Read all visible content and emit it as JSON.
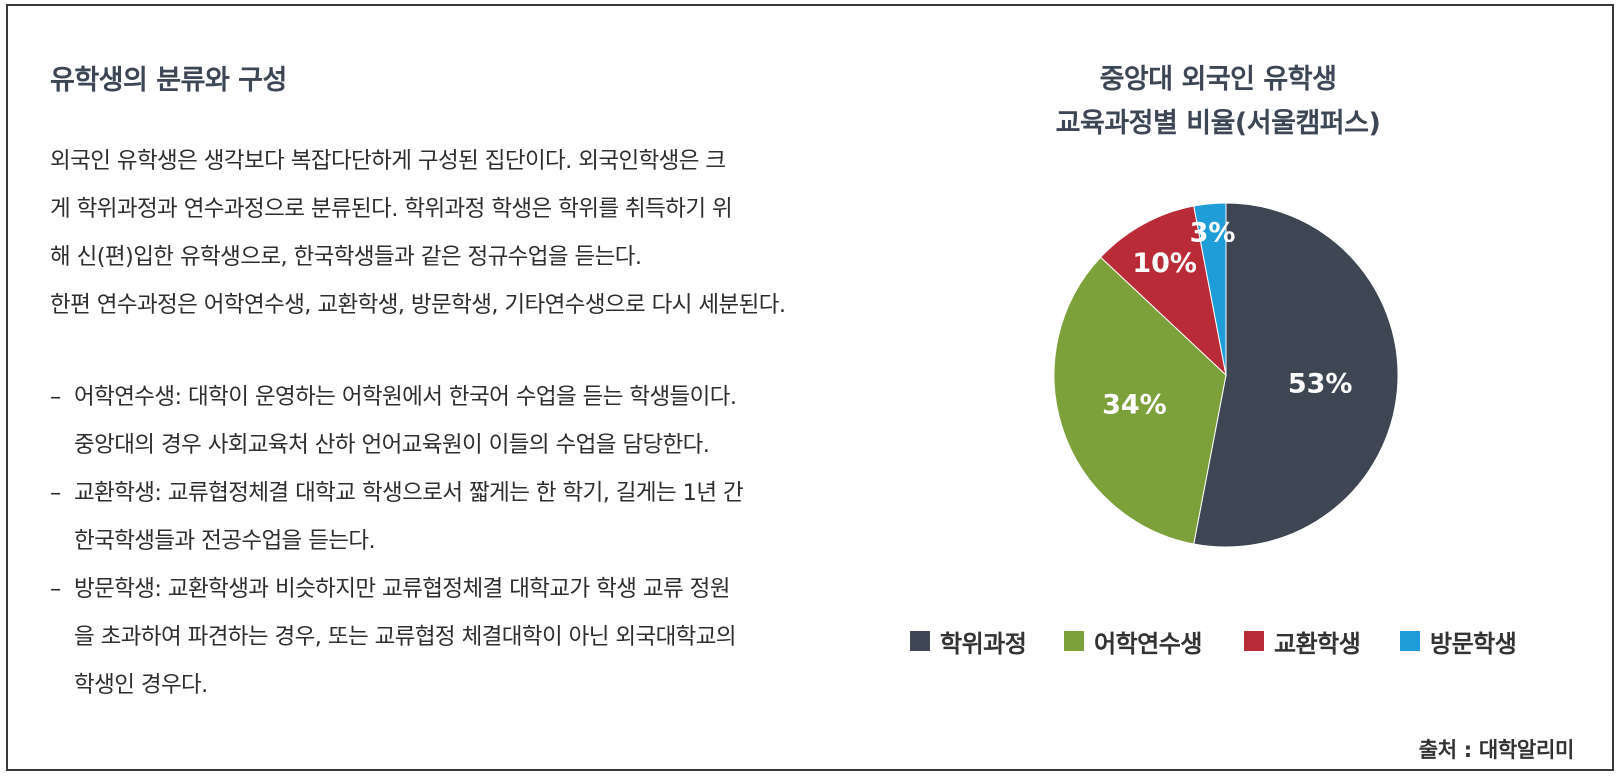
{
  "left": {
    "heading": "유학생의 분류와 구성",
    "intro_lines": [
      "외국인 유학생은 생각보다 복잡다단하게 구성된 집단이다.  외국인학생은 크",
      "게 학위과정과 연수과정으로 분류된다. 학위과정 학생은 학위를 취득하기 위",
      "해 신(편)입한 유학생으로, 한국학생들과 같은 정규수업을 듣는다.",
      "한편 연수과정은 어학연수생, 교환학생, 방문학생, 기타연수생으로 다시 세분된다."
    ],
    "dash": "–",
    "bullets": [
      {
        "lines": [
          "어학연수생: 대학이 운영하는 어학원에서 한국어 수업을 듣는 학생들이다.",
          "중앙대의 경우 사회교육처 산하 언어교육원이 이들의 수업을 담당한다."
        ]
      },
      {
        "lines": [
          "교환학생: 교류협정체결 대학교 학생으로서 짧게는 한 학기, 길게는 1년 간",
          "한국학생들과 전공수업을 듣는다."
        ]
      },
      {
        "lines": [
          "방문학생: 교환학생과 비슷하지만 교류협정체결 대학교가 학생 교류 정원",
          "을 초과하여 파견하는 경우, 또는 교류협정 체결대학이 아닌 외국대학교의",
          "학생인 경우다."
        ]
      }
    ]
  },
  "chart_data": {
    "type": "pie",
    "title": "중앙대 외국인 유학생",
    "subtitle": "교육과정별 비율(서울캠퍼스)",
    "categories": [
      "학위과정",
      "어학연수생",
      "교환학생",
      "방문학생"
    ],
    "values": [
      53,
      34,
      10,
      3
    ],
    "labels": [
      "53%",
      "34%",
      "10%",
      "3%"
    ],
    "colors": [
      "#3d4652",
      "#7ca13a",
      "#b82b37",
      "#1e9dd9"
    ],
    "legend_position": "bottom"
  },
  "source": "출처 : 대학알리미"
}
